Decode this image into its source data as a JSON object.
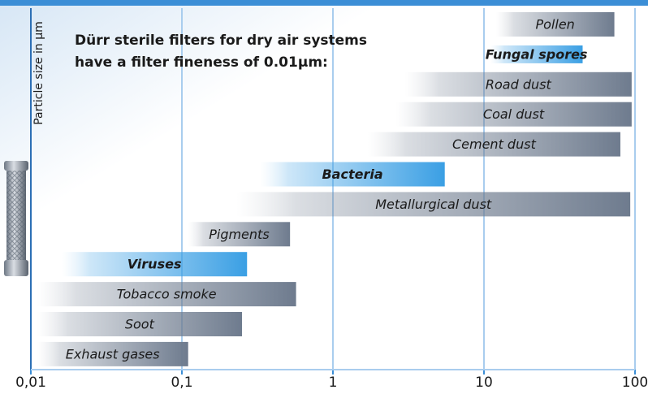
{
  "chart_data": {
    "type": "range-bar",
    "annotation": [
      "Dürr sterile filters for dry air systems",
      "have a filter fineness of 0.01µm:"
    ],
    "ylabel": "Particle size in µm",
    "categories": [
      "Pollen",
      "Fungal spores",
      "Road dust",
      "Coal dust",
      "Cement dust",
      "Bacteria",
      "Metallurgical dust",
      "Pigments",
      "Viruses",
      "Tobacco smoke",
      "Soot",
      "Exhaust gases"
    ],
    "low": [
      12,
      11,
      3,
      2.6,
      1.7,
      0.33,
      0.23,
      0.11,
      0.016,
      0.011,
      0.011,
      0.011
    ],
    "high": [
      73,
      45,
      95,
      95,
      80,
      5.5,
      93,
      0.52,
      0.27,
      0.57,
      0.25,
      0.11
    ],
    "highlighted": [
      false,
      true,
      false,
      false,
      false,
      true,
      false,
      false,
      true,
      false,
      false,
      false
    ],
    "color": "#6e7b8e",
    "highlight_color": "#3a9fe4",
    "log_x": true,
    "xlim": [
      0.01,
      100
    ],
    "xticks": [
      {
        "value": 0.01,
        "label": "0,01"
      },
      {
        "value": 0.1,
        "label": "0,1"
      },
      1,
      10,
      100
    ],
    "grid": true
  }
}
